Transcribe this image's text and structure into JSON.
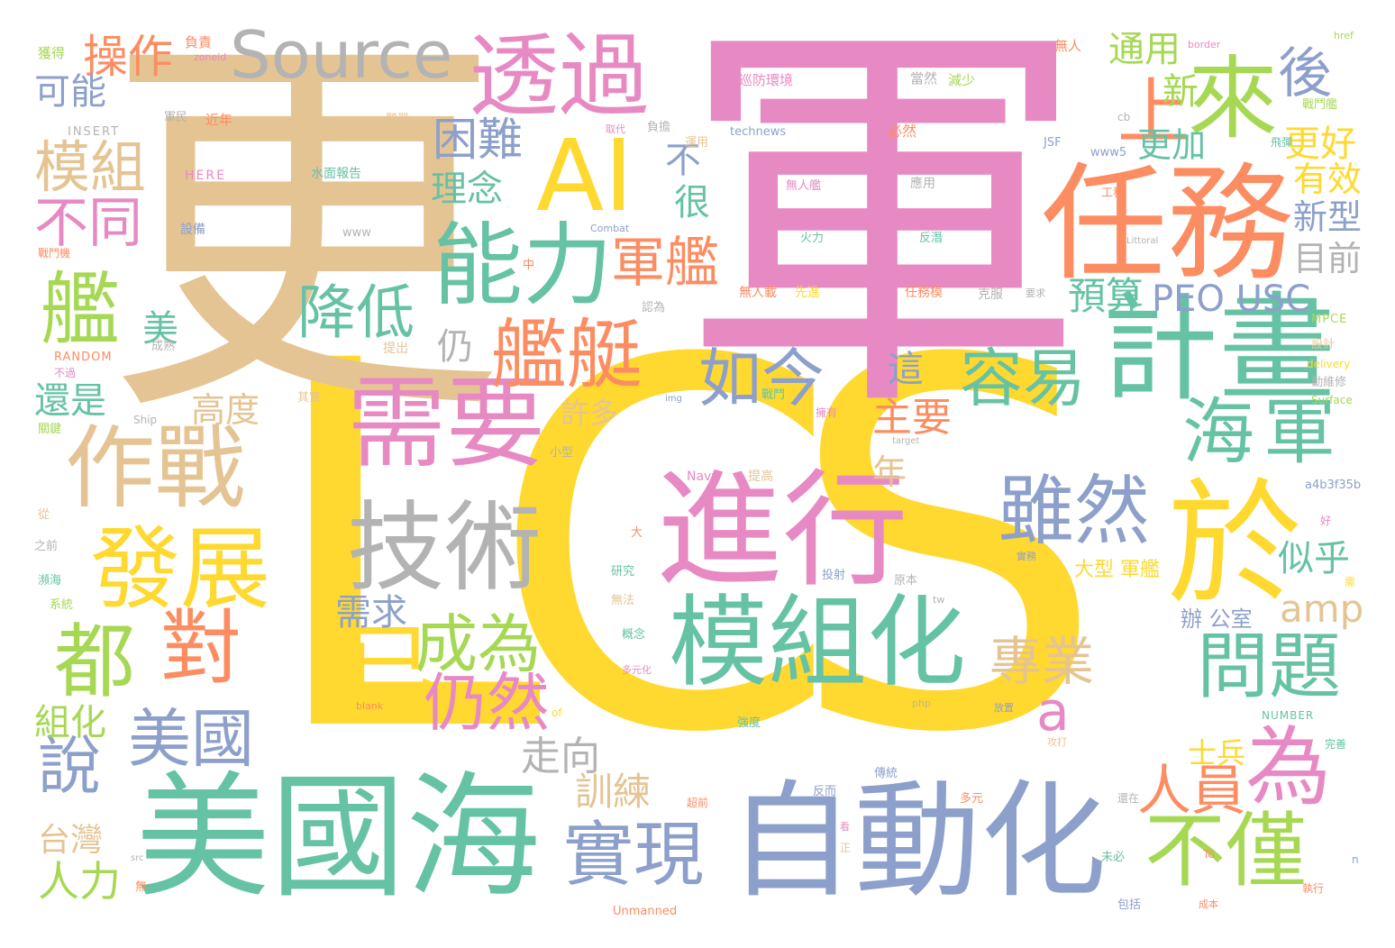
{
  "palette": {
    "tan": "#e5c494",
    "pink": "#e78ac3",
    "yellow": "#ffd92f",
    "green": "#66c2a5",
    "orange": "#fc8d62",
    "blue": "#8da0cb",
    "lime": "#a6d854",
    "gray": "#b3b3b3"
  },
  "words": [
    {
      "text": "LCS",
      "color": "yellow"
    },
    {
      "text": "更",
      "color": "tan"
    },
    {
      "text": "軍",
      "color": "pink"
    },
    {
      "text": "美國海",
      "color": "green"
    },
    {
      "text": "自動化",
      "color": "blue"
    },
    {
      "text": "任務",
      "color": "orange"
    },
    {
      "text": "進行",
      "color": "pink"
    },
    {
      "text": "模組化",
      "color": "green"
    },
    {
      "text": "計畫",
      "color": "green"
    },
    {
      "text": "需要",
      "color": "pink"
    },
    {
      "text": "技術",
      "color": "gray"
    },
    {
      "text": "透過",
      "color": "pink"
    },
    {
      "text": "能力",
      "color": "green"
    },
    {
      "text": "AI",
      "color": "yellow"
    },
    {
      "text": "作戰",
      "color": "tan"
    },
    {
      "text": "發展",
      "color": "yellow"
    },
    {
      "text": "艦艇",
      "color": "orange"
    },
    {
      "text": "於",
      "color": "yellow"
    },
    {
      "text": "雖然",
      "color": "blue"
    },
    {
      "text": "不僅",
      "color": "lime"
    },
    {
      "text": "實現",
      "color": "blue"
    },
    {
      "text": "來",
      "color": "lime"
    },
    {
      "text": "Source",
      "color": "gray"
    },
    {
      "text": "對",
      "color": "orange"
    },
    {
      "text": "都",
      "color": "lime"
    },
    {
      "text": "問題",
      "color": "green"
    },
    {
      "text": "為",
      "color": "pink"
    },
    {
      "text": "艦",
      "color": "lime"
    },
    {
      "text": "上",
      "color": "orange"
    },
    {
      "text": "海軍",
      "color": "green"
    },
    {
      "text": "容易",
      "color": "green"
    },
    {
      "text": "如今",
      "color": "blue"
    },
    {
      "text": "降低",
      "color": "green"
    },
    {
      "text": "成為",
      "color": "lime"
    },
    {
      "text": "仍然",
      "color": "pink"
    },
    {
      "text": "已",
      "color": "yellow"
    },
    {
      "text": "美國",
      "color": "blue"
    },
    {
      "text": "說",
      "color": "blue"
    },
    {
      "text": "軍艦",
      "color": "orange"
    },
    {
      "text": "模組",
      "color": "tan"
    },
    {
      "text": "不同",
      "color": "pink"
    },
    {
      "text": "操作",
      "color": "orange"
    },
    {
      "text": "困難",
      "color": "blue"
    },
    {
      "text": "人員",
      "color": "orange"
    },
    {
      "text": "專業",
      "color": "tan"
    },
    {
      "text": "後",
      "color": "blue"
    },
    {
      "text": "a",
      "color": "pink"
    },
    {
      "text": "PEO USC",
      "color": "blue"
    },
    {
      "text": "預算",
      "color": "green"
    },
    {
      "text": "amp",
      "color": "tan"
    },
    {
      "text": "主要",
      "color": "orange"
    },
    {
      "text": "走向",
      "color": "gray"
    },
    {
      "text": "訓練",
      "color": "tan"
    },
    {
      "text": "通用",
      "color": "lime"
    },
    {
      "text": "更好",
      "color": "yellow"
    },
    {
      "text": "新",
      "color": "lime"
    },
    {
      "text": "更加",
      "color": "green"
    },
    {
      "text": "有效",
      "color": "yellow"
    },
    {
      "text": "新型",
      "color": "blue"
    },
    {
      "text": "目前",
      "color": "gray"
    },
    {
      "text": "似乎",
      "color": "green"
    },
    {
      "text": "很",
      "color": "green"
    },
    {
      "text": "不",
      "color": "blue"
    },
    {
      "text": "理念",
      "color": "green"
    },
    {
      "text": "可能",
      "color": "blue"
    },
    {
      "text": "高度",
      "color": "tan"
    },
    {
      "text": "還是",
      "color": "green"
    },
    {
      "text": "美",
      "color": "green"
    },
    {
      "text": "仍",
      "color": "gray"
    },
    {
      "text": "這",
      "color": "blue"
    },
    {
      "text": "許多",
      "color": "tan"
    },
    {
      "text": "年",
      "color": "tan"
    },
    {
      "text": "需求",
      "color": "blue"
    },
    {
      "text": "組化",
      "color": "lime"
    },
    {
      "text": "台灣",
      "color": "tan"
    },
    {
      "text": "人力",
      "color": "lime"
    },
    {
      "text": "士兵",
      "color": "yellow"
    },
    {
      "text": "大型 軍艦",
      "color": "yellow"
    },
    {
      "text": "辦 公室",
      "color": "blue"
    },
    {
      "text": "獲得",
      "color": "lime"
    },
    {
      "text": "負責",
      "color": "orange"
    },
    {
      "text": "zoneid",
      "color": "pink"
    },
    {
      "text": "INSERT",
      "color": "gray"
    },
    {
      "text": "軍民",
      "color": "gray"
    },
    {
      "text": "近年",
      "color": "orange"
    },
    {
      "text": "題單",
      "color": "tan"
    },
    {
      "text": "HERE",
      "color": "pink"
    },
    {
      "text": "水面報告",
      "color": "green"
    },
    {
      "text": "設備",
      "color": "blue"
    },
    {
      "text": "www",
      "color": "gray"
    },
    {
      "text": "巡防環境",
      "color": "pink"
    },
    {
      "text": "當然",
      "color": "gray"
    },
    {
      "text": "減少",
      "color": "lime"
    },
    {
      "text": "無人",
      "color": "orange"
    },
    {
      "text": "border",
      "color": "pink"
    },
    {
      "text": "href",
      "color": "lime"
    },
    {
      "text": "cb",
      "color": "gray"
    },
    {
      "text": "戰鬥艦",
      "color": "lime"
    },
    {
      "text": "technews",
      "color": "blue"
    },
    {
      "text": "必然",
      "color": "orange"
    },
    {
      "text": "取代",
      "color": "pink"
    },
    {
      "text": "負擔",
      "color": "gray"
    },
    {
      "text": "運用",
      "color": "tan"
    },
    {
      "text": "JSF",
      "color": "blue"
    },
    {
      "text": "www5",
      "color": "blue"
    },
    {
      "text": "飛彈",
      "color": "green"
    },
    {
      "text": "無人艦",
      "color": "pink"
    },
    {
      "text": "應用",
      "color": "gray"
    },
    {
      "text": "工程",
      "color": "orange"
    },
    {
      "text": "火力",
      "color": "green"
    },
    {
      "text": "反潛",
      "color": "green"
    },
    {
      "text": "Combat",
      "color": "blue"
    },
    {
      "text": "Littoral",
      "color": "gray"
    },
    {
      "text": "戰鬥機",
      "color": "orange"
    },
    {
      "text": "中",
      "color": "orange"
    },
    {
      "text": "無人載",
      "color": "orange"
    },
    {
      "text": "先進",
      "color": "yellow"
    },
    {
      "text": "任務模",
      "color": "orange"
    },
    {
      "text": "克服",
      "color": "gray"
    },
    {
      "text": "要求",
      "color": "gray"
    },
    {
      "text": "MPCE",
      "color": "lime"
    },
    {
      "text": "認為",
      "color": "gray"
    },
    {
      "text": "成熟",
      "color": "gray"
    },
    {
      "text": "提出",
      "color": "tan"
    },
    {
      "text": "RANDOM",
      "color": "orange"
    },
    {
      "text": "不過",
      "color": "pink"
    },
    {
      "text": "其實",
      "color": "tan"
    },
    {
      "text": "img",
      "color": "blue"
    },
    {
      "text": "戰鬥",
      "color": "green"
    },
    {
      "text": "擁有",
      "color": "pink"
    },
    {
      "text": "設計",
      "color": "tan"
    },
    {
      "text": "delivery",
      "color": "yellow"
    },
    {
      "text": "勤維修",
      "color": "gray"
    },
    {
      "text": "Surface",
      "color": "lime"
    },
    {
      "text": "Ship",
      "color": "gray"
    },
    {
      "text": "關鍵",
      "color": "lime"
    },
    {
      "text": "target",
      "color": "gray"
    },
    {
      "text": "小型",
      "color": "gray"
    },
    {
      "text": "Navy",
      "color": "pink"
    },
    {
      "text": "提高",
      "color": "tan"
    },
    {
      "text": "a4b3f35b",
      "color": "blue"
    },
    {
      "text": "從",
      "color": "tan"
    },
    {
      "text": "之前",
      "color": "gray"
    },
    {
      "text": "瀕海",
      "color": "green"
    },
    {
      "text": "系統",
      "color": "lime"
    },
    {
      "text": "研究",
      "color": "green"
    },
    {
      "text": "投射",
      "color": "blue"
    },
    {
      "text": "原本",
      "color": "gray"
    },
    {
      "text": "實務",
      "color": "blue"
    },
    {
      "text": "無法",
      "color": "tan"
    },
    {
      "text": "概念",
      "color": "green"
    },
    {
      "text": "多元化",
      "color": "pink"
    },
    {
      "text": "tw",
      "color": "gray"
    },
    {
      "text": "php",
      "color": "gray"
    },
    {
      "text": "blank",
      "color": "orange"
    },
    {
      "text": "of",
      "color": "yellow"
    },
    {
      "text": "強度",
      "color": "green"
    },
    {
      "text": "放置",
      "color": "blue"
    },
    {
      "text": "攻打",
      "color": "tan"
    },
    {
      "text": "NUMBER",
      "color": "green"
    },
    {
      "text": "完善",
      "color": "green"
    },
    {
      "text": "傳統",
      "color": "blue"
    },
    {
      "text": "超前",
      "color": "orange"
    },
    {
      "text": "反而",
      "color": "blue"
    },
    {
      "text": "多元",
      "color": "orange"
    },
    {
      "text": "還在",
      "color": "gray"
    },
    {
      "text": "To",
      "color": "orange"
    },
    {
      "text": "未必",
      "color": "green"
    },
    {
      "text": "執行",
      "color": "orange"
    },
    {
      "text": "包括",
      "color": "blue"
    },
    {
      "text": "成本",
      "color": "orange"
    },
    {
      "text": "Unmanned",
      "color": "orange"
    },
    {
      "text": "n",
      "color": "blue"
    },
    {
      "text": "無",
      "color": "orange"
    },
    {
      "text": "src",
      "color": "gray"
    },
    {
      "text": "正",
      "color": "tan"
    },
    {
      "text": "看",
      "color": "pink"
    },
    {
      "text": "大",
      "color": "orange"
    },
    {
      "text": "好",
      "color": "pink"
    },
    {
      "text": "需",
      "color": "yellow"
    }
  ]
}
